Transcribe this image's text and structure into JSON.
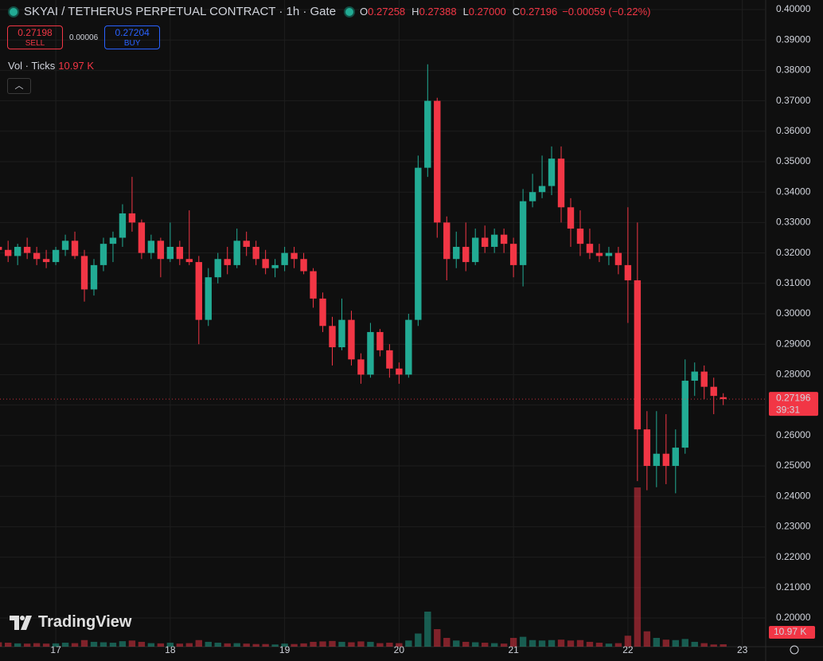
{
  "header": {
    "symbol": "SKYAI / TETHERUS PERPETUAL CONTRACT · 1h · Gate",
    "ohlc": [
      {
        "key": "O",
        "value": "0.27258"
      },
      {
        "key": "H",
        "value": "0.27388"
      },
      {
        "key": "L",
        "value": "0.27000"
      },
      {
        "key": "C",
        "value": "0.27196"
      }
    ],
    "change": "−0.00059 (−0.22%)",
    "sell": {
      "price": "0.27198",
      "label": "SELL"
    },
    "spread": "0.00006",
    "buy": {
      "price": "0.27204",
      "label": "BUY"
    },
    "volume_label": "Vol · Ticks",
    "volume_value": "10.97 K",
    "logo": "TradingView"
  },
  "chart_data": {
    "type": "candlestick",
    "x": [
      -12,
      -10,
      -8,
      -6,
      -4,
      -2,
      0,
      2,
      4,
      6,
      8,
      10,
      12,
      14,
      16,
      18,
      20,
      22,
      24,
      26,
      28,
      30,
      32,
      34,
      36,
      38,
      40,
      42,
      44,
      46,
      48,
      50,
      52,
      54,
      56,
      58,
      60,
      62,
      64,
      66,
      68,
      70,
      72,
      74,
      76,
      78,
      80,
      82,
      84,
      86,
      88,
      90,
      92,
      94,
      96,
      98,
      100,
      102,
      104,
      106,
      108,
      110,
      112,
      114,
      116,
      118,
      120,
      122,
      124,
      126,
      128,
      130,
      132,
      134,
      136,
      138,
      140
    ],
    "open": [
      0.322,
      0.321,
      0.319,
      0.322,
      0.32,
      0.318,
      0.317,
      0.321,
      0.324,
      0.319,
      0.308,
      0.316,
      0.323,
      0.325,
      0.333,
      0.33,
      0.32,
      0.324,
      0.318,
      0.322,
      0.318,
      0.317,
      0.298,
      0.312,
      0.318,
      0.316,
      0.324,
      0.322,
      0.318,
      0.315,
      0.316,
      0.32,
      0.318,
      0.314,
      0.305,
      0.296,
      0.289,
      0.298,
      0.285,
      0.28,
      0.294,
      0.288,
      0.282,
      0.28,
      0.298,
      0.348,
      0.37,
      0.33,
      0.318,
      0.322,
      0.317,
      0.325,
      0.322,
      0.326,
      0.323,
      0.316,
      0.337,
      0.34,
      0.342,
      0.351,
      0.335,
      0.328,
      0.323,
      0.32,
      0.319,
      0.32,
      0.316,
      0.311,
      0.262,
      0.25,
      0.254,
      0.25,
      0.256,
      0.278,
      0.281,
      0.276,
      0.27258
    ],
    "high": [
      0.327,
      0.324,
      0.323,
      0.325,
      0.322,
      0.321,
      0.322,
      0.326,
      0.327,
      0.321,
      0.318,
      0.325,
      0.327,
      0.336,
      0.345,
      0.331,
      0.326,
      0.325,
      0.33,
      0.324,
      0.334,
      0.319,
      0.315,
      0.32,
      0.322,
      0.328,
      0.327,
      0.324,
      0.321,
      0.318,
      0.322,
      0.322,
      0.32,
      0.315,
      0.307,
      0.299,
      0.305,
      0.301,
      0.287,
      0.297,
      0.295,
      0.29,
      0.284,
      0.3,
      0.352,
      0.382,
      0.371,
      0.332,
      0.327,
      0.33,
      0.328,
      0.329,
      0.328,
      0.328,
      0.325,
      0.341,
      0.346,
      0.352,
      0.355,
      0.355,
      0.338,
      0.334,
      0.328,
      0.323,
      0.322,
      0.322,
      0.335,
      0.33,
      0.268,
      0.268,
      0.267,
      0.262,
      0.285,
      0.284,
      0.283,
      0.279,
      0.27388
    ],
    "low": [
      0.319,
      0.317,
      0.316,
      0.318,
      0.316,
      0.315,
      0.316,
      0.319,
      0.318,
      0.304,
      0.306,
      0.314,
      0.317,
      0.322,
      0.327,
      0.318,
      0.318,
      0.312,
      0.317,
      0.316,
      0.316,
      0.29,
      0.296,
      0.31,
      0.313,
      0.315,
      0.319,
      0.316,
      0.313,
      0.312,
      0.314,
      0.315,
      0.313,
      0.302,
      0.294,
      0.283,
      0.288,
      0.283,
      0.277,
      0.279,
      0.286,
      0.279,
      0.277,
      0.279,
      0.296,
      0.345,
      0.325,
      0.311,
      0.315,
      0.314,
      0.316,
      0.32,
      0.32,
      0.32,
      0.312,
      0.309,
      0.335,
      0.338,
      0.339,
      0.33,
      0.322,
      0.319,
      0.318,
      0.317,
      0.316,
      0.313,
      0.297,
      0.245,
      0.242,
      0.243,
      0.244,
      0.241,
      0.254,
      0.273,
      0.272,
      0.267,
      0.27
    ],
    "close": [
      0.321,
      0.319,
      0.322,
      0.32,
      0.318,
      0.317,
      0.321,
      0.324,
      0.319,
      0.308,
      0.316,
      0.323,
      0.325,
      0.333,
      0.33,
      0.32,
      0.324,
      0.318,
      0.322,
      0.318,
      0.317,
      0.298,
      0.312,
      0.318,
      0.316,
      0.324,
      0.322,
      0.318,
      0.315,
      0.316,
      0.32,
      0.318,
      0.314,
      0.305,
      0.296,
      0.289,
      0.298,
      0.285,
      0.28,
      0.294,
      0.288,
      0.282,
      0.28,
      0.298,
      0.348,
      0.37,
      0.33,
      0.318,
      0.322,
      0.317,
      0.325,
      0.322,
      0.326,
      0.323,
      0.316,
      0.337,
      0.34,
      0.342,
      0.351,
      0.335,
      0.328,
      0.323,
      0.32,
      0.319,
      0.32,
      0.316,
      0.311,
      0.262,
      0.25,
      0.254,
      0.25,
      0.256,
      0.278,
      0.281,
      0.276,
      0.273,
      0.27196
    ],
    "volume": [
      20,
      18,
      15,
      14,
      16,
      14,
      15,
      18,
      16,
      30,
      22,
      20,
      18,
      25,
      28,
      22,
      16,
      15,
      18,
      14,
      16,
      30,
      22,
      18,
      15,
      16,
      14,
      12,
      12,
      10,
      14,
      12,
      15,
      22,
      24,
      26,
      22,
      20,
      24,
      22,
      16,
      18,
      16,
      28,
      60,
      160,
      80,
      40,
      28,
      22,
      20,
      18,
      16,
      14,
      40,
      45,
      30,
      28,
      30,
      32,
      28,
      30,
      22,
      18,
      14,
      16,
      50,
      727,
      70,
      40,
      32,
      30,
      35,
      22,
      16,
      10,
      10.97
    ],
    "vlim": [
      0,
      800
    ],
    "up_color": "#22ab94",
    "down_color": "#f23645",
    "xlim": [
      -11.7,
      148.9
    ],
    "xticks": [
      {
        "value": 0,
        "label": "17"
      },
      {
        "value": 24,
        "label": "18"
      },
      {
        "value": 48,
        "label": "19"
      },
      {
        "value": 72,
        "label": "20"
      },
      {
        "value": 96,
        "label": "21"
      },
      {
        "value": 120,
        "label": "22"
      },
      {
        "value": 144,
        "label": "23"
      }
    ],
    "ylim": [
      0.19058,
      0.40314
    ],
    "yticks": [
      {
        "value": 0.2,
        "label": "0.20000"
      },
      {
        "value": 0.21,
        "label": "0.21000"
      },
      {
        "value": 0.22,
        "label": "0.22000"
      },
      {
        "value": 0.23,
        "label": "0.23000"
      },
      {
        "value": 0.24,
        "label": "0.24000"
      },
      {
        "value": 0.25,
        "label": "0.25000"
      },
      {
        "value": 0.26,
        "label": "0.26000"
      },
      {
        "value": 0.27,
        "label": "0.27000"
      },
      {
        "value": 0.28,
        "label": "0.28000"
      },
      {
        "value": 0.29,
        "label": "0.29000"
      },
      {
        "value": 0.3,
        "label": "0.30000"
      },
      {
        "value": 0.31,
        "label": "0.31000"
      },
      {
        "value": 0.32,
        "label": "0.32000"
      },
      {
        "value": 0.33,
        "label": "0.33000"
      },
      {
        "value": 0.34,
        "label": "0.34000"
      },
      {
        "value": 0.35,
        "label": "0.35000"
      },
      {
        "value": 0.36,
        "label": "0.36000"
      },
      {
        "value": 0.37,
        "label": "0.37000"
      },
      {
        "value": 0.38,
        "label": "0.38000"
      },
      {
        "value": 0.39,
        "label": "0.39000"
      },
      {
        "value": 0.4,
        "label": "0.40000"
      }
    ],
    "grid": true,
    "last_price": 0.27196,
    "countdown": "39:31"
  }
}
